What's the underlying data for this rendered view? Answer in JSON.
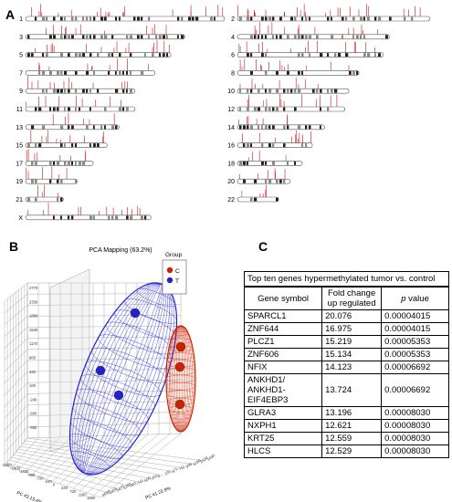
{
  "panels": {
    "a": "A",
    "b": "B",
    "c": "C"
  },
  "karyogram": {
    "chromosomes": [
      {
        "label": "1",
        "col": 0,
        "row": 0,
        "len": 1.0
      },
      {
        "label": "2",
        "col": 1,
        "row": 0,
        "len": 0.95
      },
      {
        "label": "3",
        "col": 0,
        "row": 1,
        "len": 0.8
      },
      {
        "label": "4",
        "col": 1,
        "row": 1,
        "len": 0.75
      },
      {
        "label": "5",
        "col": 0,
        "row": 2,
        "len": 0.73
      },
      {
        "label": "6",
        "col": 1,
        "row": 2,
        "len": 0.72
      },
      {
        "label": "7",
        "col": 0,
        "row": 3,
        "len": 0.65
      },
      {
        "label": "8",
        "col": 1,
        "row": 3,
        "len": 0.6
      },
      {
        "label": "9",
        "col": 0,
        "row": 4,
        "len": 0.55
      },
      {
        "label": "10",
        "col": 1,
        "row": 4,
        "len": 0.55
      },
      {
        "label": "11",
        "col": 0,
        "row": 5,
        "len": 0.55
      },
      {
        "label": "12",
        "col": 1,
        "row": 5,
        "len": 0.53
      },
      {
        "label": "13",
        "col": 0,
        "row": 6,
        "len": 0.47
      },
      {
        "label": "14",
        "col": 1,
        "row": 6,
        "len": 0.43
      },
      {
        "label": "15",
        "col": 0,
        "row": 7,
        "len": 0.41
      },
      {
        "label": "16",
        "col": 1,
        "row": 7,
        "len": 0.37
      },
      {
        "label": "17",
        "col": 0,
        "row": 8,
        "len": 0.34
      },
      {
        "label": "18",
        "col": 1,
        "row": 8,
        "len": 0.32
      },
      {
        "label": "19",
        "col": 0,
        "row": 9,
        "len": 0.26
      },
      {
        "label": "20",
        "col": 1,
        "row": 9,
        "len": 0.26
      },
      {
        "label": "21",
        "col": 0,
        "row": 10,
        "len": 0.19
      },
      {
        "label": "22",
        "col": 1,
        "row": 10,
        "len": 0.2
      },
      {
        "label": "X",
        "col": 0,
        "row": 11,
        "len": 0.63
      }
    ]
  },
  "pca": {
    "title": "PCA Mapping (63.2%)",
    "legend_title": "Group",
    "groups": [
      {
        "label": "C",
        "color": "#cc2200"
      },
      {
        "label": "T",
        "color": "#2222cc"
      }
    ],
    "axis_labels": {
      "pc1": "PC #1 22.9%",
      "pc3": "PC #3 13.4%"
    },
    "tick_labels_pc3": [
      "-2450",
      "-1900",
      "-1450",
      "-960",
      "-720",
      "-240",
      "0",
      "240",
      "720",
      "1190",
      "1650"
    ],
    "tick_labels_pc1": [
      "-2610",
      "-1860",
      "-1470",
      "-1200",
      "-981",
      "-741",
      "-500",
      "-251",
      "0",
      "231",
      "471",
      "711",
      "959",
      "1190",
      "1430",
      "1690"
    ],
    "tick_labels_pc2": [
      "2770",
      "2330",
      "1880",
      "1530",
      "1170",
      "800",
      "440",
      "100",
      "-240",
      "-600",
      "-960"
    ]
  },
  "table": {
    "caption": "Top ten genes hypermethylated tumor vs. control",
    "headers": {
      "gene": "Gene symbol",
      "fold": "Fold change up regulated",
      "p_italic": "p",
      "p_rest": " value"
    },
    "rows": [
      {
        "gene": "SPARCL1",
        "fold": "20.076",
        "p": "0.00004015"
      },
      {
        "gene": "ZNF644",
        "fold": "16.975",
        "p": "0.00004015"
      },
      {
        "gene": "PLCZ1",
        "fold": "15.219",
        "p": "0.00005353"
      },
      {
        "gene": "ZNF606",
        "fold": "15.134",
        "p": "0.00005353"
      },
      {
        "gene": "NFIX",
        "fold": "14.123",
        "p": "0.00006692"
      },
      {
        "gene": "ANKHD1/ ANKHD1-EIF4EBP3",
        "fold": "13.724",
        "p": "0.00006692"
      },
      {
        "gene": "GLRA3",
        "fold": "13.196",
        "p": "0.00008030"
      },
      {
        "gene": "NXPH1",
        "fold": "12.621",
        "p": "0.00008030"
      },
      {
        "gene": "KRT25",
        "fold": "12.559",
        "p": "0.00008030"
      },
      {
        "gene": "HLCS",
        "fold": "12.529",
        "p": "0.00008030"
      }
    ]
  }
}
